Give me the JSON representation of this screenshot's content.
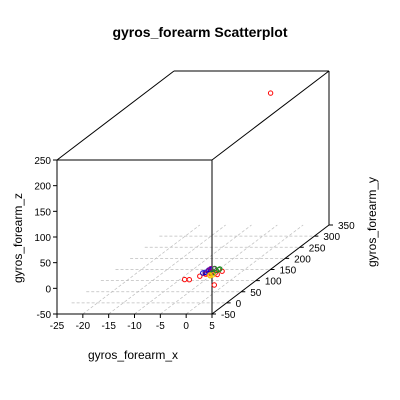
{
  "chart_data": {
    "type": "scatter",
    "title": "gyros_forearm Scatterplot",
    "xlabel": "gyros_forearm_x",
    "ylabel": "gyros_forearm_y",
    "zlabel": "gyros_forearm_z",
    "xlim": [
      -25,
      5
    ],
    "ylim": [
      -50,
      350
    ],
    "zlim": [
      -50,
      250
    ],
    "x_ticks": [
      "-25",
      "-20",
      "-15",
      "-10",
      "-5",
      "0",
      "5"
    ],
    "y_ticks": [
      "-50",
      "0",
      "50",
      "100",
      "150",
      "200",
      "250",
      "300",
      "350"
    ],
    "z_ticks": [
      "-50",
      "0",
      "50",
      "100",
      "150",
      "200",
      "250"
    ],
    "grid": true,
    "box": true,
    "points": [
      {
        "x": -4.6,
        "y": 320,
        "z": 220,
        "color": "#ff0000"
      },
      {
        "x": -2.0,
        "y": -20,
        "z": 4,
        "color": "#ff0000"
      },
      {
        "x": -1.2,
        "y": -18,
        "z": 3,
        "color": "#ff0000"
      },
      {
        "x": 4.6,
        "y": -35,
        "z": 0,
        "color": "#ff0000"
      },
      {
        "x": 0.3,
        "y": 10,
        "z": 2,
        "color": "#ff0000"
      },
      {
        "x": 1.2,
        "y": 12,
        "z": 3,
        "color": "#ff0000"
      },
      {
        "x": 2.0,
        "y": 14,
        "z": 2,
        "color": "#ff0000"
      },
      {
        "x": 2.6,
        "y": 10,
        "z": 1,
        "color": "#ff0000"
      },
      {
        "x": 0.8,
        "y": 5,
        "z": 4,
        "color": "#ff0000"
      },
      {
        "x": 1.6,
        "y": 6,
        "z": 5,
        "color": "#ff0000"
      },
      {
        "x": 3.0,
        "y": 20,
        "z": 3,
        "color": "#ff0000"
      },
      {
        "x": -0.2,
        "y": 0,
        "z": 2,
        "color": "#ff0000"
      },
      {
        "x": 0.0,
        "y": 15,
        "z": 3,
        "color": "#0000cd"
      },
      {
        "x": 0.4,
        "y": 18,
        "z": 4,
        "color": "#0000cd"
      },
      {
        "x": -0.3,
        "y": 12,
        "z": 3,
        "color": "#0000cd"
      },
      {
        "x": 0.6,
        "y": 22,
        "z": 5,
        "color": "#0000cd"
      },
      {
        "x": 1.0,
        "y": 15,
        "z": 6,
        "color": "#0000cd"
      },
      {
        "x": 0.1,
        "y": 25,
        "z": 3,
        "color": "#0000cd"
      },
      {
        "x": 0.8,
        "y": 20,
        "z": 8,
        "color": "#8b008b"
      },
      {
        "x": 1.2,
        "y": 24,
        "z": 6,
        "color": "#8b008b"
      },
      {
        "x": 0.5,
        "y": 18,
        "z": 5,
        "color": "#8b008b"
      },
      {
        "x": 1.4,
        "y": 16,
        "z": 4,
        "color": "#8b008b"
      },
      {
        "x": 1.5,
        "y": 12,
        "z": 3,
        "color": "#228b22"
      },
      {
        "x": 2.0,
        "y": 18,
        "z": 5,
        "color": "#228b22"
      },
      {
        "x": 1.8,
        "y": 10,
        "z": 4,
        "color": "#228b22"
      },
      {
        "x": 2.4,
        "y": 20,
        "z": 6,
        "color": "#228b22"
      },
      {
        "x": 1.0,
        "y": 30,
        "z": 4,
        "color": "#228b22"
      },
      {
        "x": 2.2,
        "y": 26,
        "z": 5,
        "color": "#228b22"
      },
      {
        "x": 1.3,
        "y": 8,
        "z": 1,
        "color": "#ffcc00"
      },
      {
        "x": 2.0,
        "y": 6,
        "z": 2,
        "color": "#ffcc00"
      },
      {
        "x": 1.6,
        "y": 4,
        "z": 1,
        "color": "#ffcc00"
      }
    ]
  }
}
